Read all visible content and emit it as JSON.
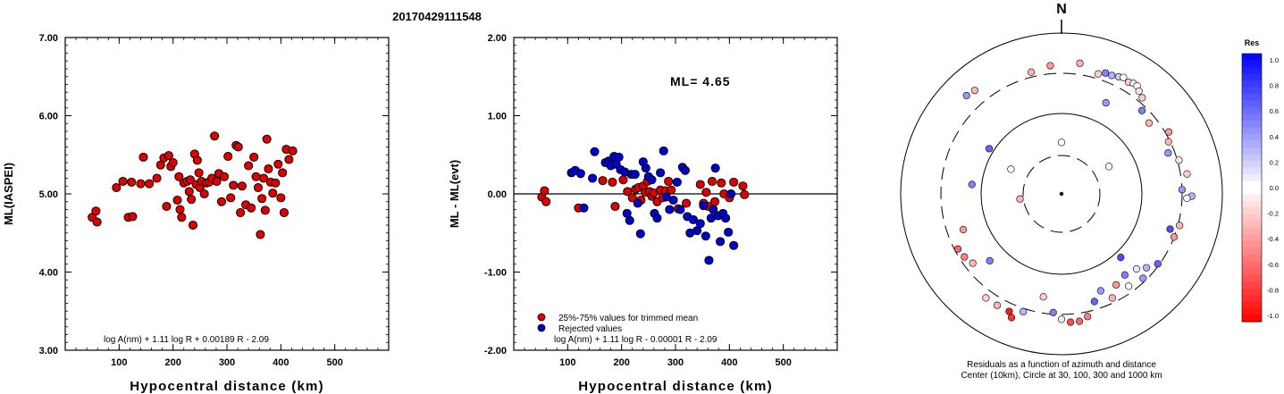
{
  "title": "20170429111548",
  "colors": {
    "kept": "#dd0000",
    "rejected": "#0000cc",
    "axis": "#000000"
  },
  "chart_data": [
    {
      "id": "ml_vs_distance",
      "type": "scatter",
      "xlabel": "Hypocentral distance (km)",
      "ylabel": "ML(IASPEI)",
      "xlim": [
        0,
        600
      ],
      "ylim": [
        3.0,
        7.0
      ],
      "xticks": [
        "100",
        "200",
        "300",
        "400",
        "500"
      ],
      "yticks": [
        "3.00",
        "4.00",
        "5.00",
        "6.00",
        "7.00"
      ],
      "formula": "log A(nm) + 1.11 log R + 0.00189 R - 2.09",
      "points": [
        [
          50,
          4.7
        ],
        [
          57,
          4.78
        ],
        [
          59,
          4.64
        ],
        [
          95,
          5.08
        ],
        [
          107,
          5.16
        ],
        [
          117,
          4.7
        ],
        [
          123,
          5.15
        ],
        [
          125,
          4.71
        ],
        [
          140,
          5.13
        ],
        [
          145,
          5.47
        ],
        [
          156,
          5.13
        ],
        [
          170,
          5.2
        ],
        [
          177,
          5.37
        ],
        [
          183,
          5.46
        ],
        [
          188,
          4.84
        ],
        [
          192,
          5.49
        ],
        [
          196,
          5.35
        ],
        [
          200,
          5.4
        ],
        [
          208,
          4.92
        ],
        [
          211,
          5.22
        ],
        [
          213,
          4.8
        ],
        [
          216,
          4.7
        ],
        [
          220,
          5.14
        ],
        [
          226,
          5.16
        ],
        [
          230,
          5.03
        ],
        [
          232,
          5.18
        ],
        [
          234,
          4.93
        ],
        [
          237,
          4.6
        ],
        [
          240,
          5.51
        ],
        [
          243,
          5.12
        ],
        [
          245,
          5.43
        ],
        [
          248,
          5.27
        ],
        [
          250,
          5.08
        ],
        [
          253,
          5.16
        ],
        [
          258,
          5.0
        ],
        [
          262,
          5.14
        ],
        [
          267,
          5.15
        ],
        [
          272,
          5.2
        ],
        [
          277,
          5.74
        ],
        [
          281,
          5.16
        ],
        [
          285,
          5.26
        ],
        [
          290,
          4.9
        ],
        [
          295,
          5.22
        ],
        [
          302,
          5.48
        ],
        [
          307,
          4.95
        ],
        [
          312,
          5.11
        ],
        [
          317,
          5.62
        ],
        [
          321,
          5.6
        ],
        [
          325,
          4.76
        ],
        [
          328,
          5.1
        ],
        [
          335,
          4.86
        ],
        [
          340,
          5.36
        ],
        [
          345,
          4.82
        ],
        [
          350,
          5.47
        ],
        [
          354,
          5.22
        ],
        [
          358,
          5.08
        ],
        [
          362,
          4.48
        ],
        [
          365,
          4.94
        ],
        [
          368,
          5.2
        ],
        [
          371,
          4.79
        ],
        [
          374,
          5.7
        ],
        [
          377,
          5.32
        ],
        [
          381,
          5.15
        ],
        [
          385,
          5.01
        ],
        [
          390,
          5.14
        ],
        [
          395,
          5.38
        ],
        [
          400,
          4.95
        ],
        [
          403,
          5.27
        ],
        [
          406,
          4.76
        ],
        [
          410,
          5.57
        ],
        [
          415,
          5.44
        ],
        [
          422,
          5.55
        ]
      ]
    },
    {
      "id": "ml_residuals",
      "type": "scatter",
      "xlabel": "Hypocentral distance (km)",
      "ylabel": "ML - ML(evt)",
      "xlim": [
        0,
        600
      ],
      "ylim": [
        -2.0,
        2.0
      ],
      "xticks": [
        "100",
        "200",
        "300",
        "400",
        "500"
      ],
      "yticks": [
        "-2.00",
        "-1.00",
        "0.00",
        "1.00",
        "2.00"
      ],
      "annotation": "ML= 4.65",
      "formula": "log A(nm) + 1.11 log R - 0.00001 R - 2.09",
      "legend": [
        {
          "label": "25%-75% values for trimmed mean",
          "color": "#dd0000"
        },
        {
          "label": "Rejected values",
          "color": "#0000cc"
        }
      ],
      "series": [
        {
          "name": "25%-75% values for trimmed mean",
          "color": "#dd0000",
          "points": [
            [
              52,
              -0.04
            ],
            [
              57,
              0.04
            ],
            [
              60,
              -0.1
            ],
            [
              120,
              -0.18
            ],
            [
              165,
              0.17
            ],
            [
              183,
              0.15
            ],
            [
              188,
              -0.16
            ],
            [
              203,
              0.18
            ],
            [
              211,
              0.03
            ],
            [
              220,
              -0.05
            ],
            [
              226,
              0.06
            ],
            [
              231,
              0.08
            ],
            [
              236,
              -0.08
            ],
            [
              240,
              0.1
            ],
            [
              244,
              0.02
            ],
            [
              248,
              0.16
            ],
            [
              252,
              0.03
            ],
            [
              256,
              -0.03
            ],
            [
              260,
              0.01
            ],
            [
              266,
              -0.1
            ],
            [
              272,
              0.05
            ],
            [
              276,
              -0.05
            ],
            [
              282,
              0.04
            ],
            [
              287,
              0.16
            ],
            [
              292,
              0.05
            ],
            [
              305,
              -0.19
            ],
            [
              320,
              -0.12
            ],
            [
              346,
              0.12
            ],
            [
              352,
              -0.12
            ],
            [
              357,
              0.02
            ],
            [
              361,
              -0.16
            ],
            [
              368,
              0.16
            ],
            [
              373,
              -0.1
            ],
            [
              385,
              0.14
            ],
            [
              390,
              0.0
            ],
            [
              400,
              -0.05
            ],
            [
              408,
              0.15
            ],
            [
              425,
              0.1
            ],
            [
              428,
              -0.01
            ]
          ]
        },
        {
          "name": "Rejected values",
          "color": "#0000cc",
          "points": [
            [
              107,
              0.27
            ],
            [
              114,
              0.3
            ],
            [
              124,
              0.26
            ],
            [
              130,
              -0.18
            ],
            [
              146,
              0.2
            ],
            [
              150,
              0.54
            ],
            [
              170,
              0.4
            ],
            [
              176,
              0.42
            ],
            [
              180,
              0.36
            ],
            [
              186,
              0.48
            ],
            [
              190,
              0.38
            ],
            [
              195,
              0.47
            ],
            [
              198,
              0.31
            ],
            [
              206,
              0.28
            ],
            [
              210,
              -0.25
            ],
            [
              215,
              -0.34
            ],
            [
              218,
              0.25
            ],
            [
              225,
              0.25
            ],
            [
              230,
              -0.12
            ],
            [
              235,
              -0.51
            ],
            [
              240,
              0.41
            ],
            [
              245,
              0.33
            ],
            [
              250,
              0.22
            ],
            [
              256,
              0.18
            ],
            [
              261,
              -0.25
            ],
            [
              266,
              -0.31
            ],
            [
              272,
              0.27
            ],
            [
              278,
              0.55
            ],
            [
              283,
              -0.04
            ],
            [
              289,
              -0.2
            ],
            [
              296,
              -0.08
            ],
            [
              303,
              0.15
            ],
            [
              309,
              -0.2
            ],
            [
              313,
              0.34
            ],
            [
              318,
              0.3
            ],
            [
              322,
              -0.29
            ],
            [
              327,
              -0.5
            ],
            [
              333,
              -0.33
            ],
            [
              340,
              -0.47
            ],
            [
              346,
              -0.38
            ],
            [
              352,
              -0.15
            ],
            [
              356,
              -0.54
            ],
            [
              362,
              -0.85
            ],
            [
              366,
              -0.31
            ],
            [
              370,
              -0.2
            ],
            [
              374,
              0.33
            ],
            [
              379,
              -0.28
            ],
            [
              383,
              -0.61
            ],
            [
              388,
              -0.25
            ],
            [
              393,
              -0.31
            ],
            [
              398,
              -0.49
            ],
            [
              403,
              0.0
            ],
            [
              408,
              -0.66
            ]
          ]
        }
      ]
    },
    {
      "id": "residual_map",
      "type": "scatter",
      "north_label": "N",
      "caption": [
        "Residuals as a function of azimuth and distance",
        "Center (10km), Circle at 30, 100, 300 and 1000 km"
      ],
      "colorbar": {
        "title": "Res",
        "ticks": [
          "1.0",
          "0.8",
          "0.6",
          "0.4",
          "0.2",
          "0.0",
          "-0.2",
          "-0.4",
          "-0.6",
          "-0.8",
          "-1.0"
        ]
      },
      "stations": [
        [
          -14,
          0.78,
          -0.3
        ],
        [
          -5,
          0.8,
          -0.4
        ],
        [
          8,
          0.82,
          -0.3
        ],
        [
          17,
          0.78,
          -0.2
        ],
        [
          20,
          0.8,
          0.5
        ],
        [
          23,
          0.8,
          0.3
        ],
        [
          26,
          0.81,
          0.2
        ],
        [
          28,
          0.82,
          0.0
        ],
        [
          31,
          0.81,
          -0.2
        ],
        [
          33,
          0.82,
          0.1
        ],
        [
          35,
          0.82,
          0.0
        ],
        [
          37,
          0.8,
          -0.1
        ],
        [
          40,
          0.78,
          -0.2
        ],
        [
          26,
          0.63,
          0.4
        ],
        [
          44,
          0.72,
          0.5
        ],
        [
          51,
          0.7,
          -0.3
        ],
        [
          60,
          0.77,
          -0.4
        ],
        [
          64,
          0.74,
          -0.3
        ],
        [
          69,
          0.71,
          0.4
        ],
        [
          74,
          0.76,
          -0.1
        ],
        [
          81,
          0.79,
          -0.2
        ],
        [
          88,
          0.75,
          0.4
        ],
        [
          91,
          0.81,
          0.3
        ],
        [
          92,
          0.78,
          0.0
        ],
        [
          105,
          0.76,
          -0.3
        ],
        [
          108,
          0.71,
          0.7
        ],
        [
          111,
          0.75,
          -0.4
        ],
        [
          126,
          0.74,
          0.6
        ],
        [
          131,
          0.7,
          0.3
        ],
        [
          135,
          0.66,
          0.1
        ],
        [
          136,
          0.73,
          0.4
        ],
        [
          137,
          0.54,
          0.7
        ],
        [
          142,
          0.64,
          0.5
        ],
        [
          144,
          0.71,
          0.0
        ],
        [
          149,
          0.66,
          -0.4
        ],
        [
          154,
          0.72,
          -0.3
        ],
        [
          158,
          0.65,
          0.4
        ],
        [
          163,
          0.7,
          0.6
        ],
        [
          168,
          0.78,
          -0.5
        ],
        [
          172,
          0.8,
          -0.6
        ],
        [
          176,
          0.8,
          -0.7
        ],
        [
          180,
          0.78,
          -0.1
        ],
        [
          184,
          0.74,
          0.5
        ],
        [
          190,
          0.65,
          -0.2
        ],
        [
          198,
          0.77,
          0.3
        ],
        [
          202,
          0.83,
          -0.8
        ],
        [
          204,
          0.8,
          -0.9
        ],
        [
          210,
          0.8,
          -0.3
        ],
        [
          216,
          0.8,
          -0.2
        ],
        [
          227,
          0.61,
          0.5
        ],
        [
          232,
          0.7,
          -0.3
        ],
        [
          237,
          0.72,
          -0.5
        ],
        [
          242,
          0.73,
          -0.6
        ],
        [
          250,
          0.65,
          -0.4
        ],
        [
          263,
          0.26,
          -0.3
        ],
        [
          276,
          0.56,
          0.5
        ],
        [
          302,
          0.53,
          0.6
        ],
        [
          316,
          0.85,
          0.4
        ],
        [
          320,
          0.84,
          -0.3
        ],
        [
          0,
          0.32,
          0.0
        ],
        [
          -64,
          0.35,
          0.0
        ],
        [
          60,
          0.34,
          0.0
        ]
      ]
    }
  ]
}
